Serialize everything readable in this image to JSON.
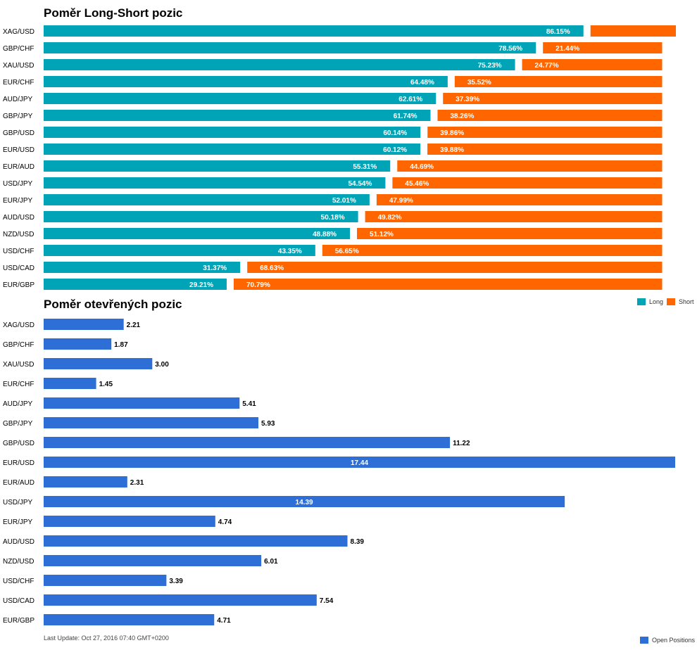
{
  "colors": {
    "long": "#00a4b6",
    "short": "#ff6600",
    "open": "#2d6fd6"
  },
  "chart_data": [
    {
      "type": "bar",
      "orientation": "horizontal",
      "stacked": true,
      "title": "Poměr Long-Short pozic",
      "categories": [
        "XAG/USD",
        "GBP/CHF",
        "XAU/USD",
        "EUR/CHF",
        "AUD/JPY",
        "GBP/JPY",
        "GBP/USD",
        "EUR/USD",
        "EUR/AUD",
        "USD/JPY",
        "EUR/JPY",
        "AUD/USD",
        "NZD/USD",
        "USD/CHF",
        "USD/CAD",
        "EUR/GBP"
      ],
      "series": [
        {
          "name": "Long",
          "values": [
            86.15,
            78.56,
            75.23,
            64.48,
            62.61,
            61.74,
            60.14,
            60.12,
            55.31,
            54.54,
            52.01,
            50.18,
            48.88,
            43.35,
            31.37,
            29.21
          ],
          "labels": [
            "86.15%",
            "78.56%",
            "75.23%",
            "64.48%",
            "62.61%",
            "61.74%",
            "60.14%",
            "60.12%",
            "55.31%",
            "54.54%",
            "52.01%",
            "50.18%",
            "48.88%",
            "43.35%",
            "31.37%",
            "29.21%"
          ]
        },
        {
          "name": "Short",
          "values": [
            13.85,
            21.44,
            24.77,
            35.52,
            37.39,
            38.26,
            39.86,
            39.88,
            44.69,
            45.46,
            47.99,
            49.82,
            51.12,
            56.65,
            68.63,
            70.79
          ],
          "labels": [
            "",
            "21.44%",
            "24.77%",
            "35.52%",
            "37.39%",
            "38.26%",
            "39.86%",
            "39.88%",
            "44.69%",
            "45.46%",
            "47.99%",
            "49.82%",
            "51.12%",
            "56.65%",
            "68.63%",
            "70.79%"
          ]
        }
      ],
      "legend": "bottom-right"
    },
    {
      "type": "bar",
      "orientation": "horizontal",
      "title": "Poměr otevřených pozic",
      "categories": [
        "XAG/USD",
        "GBP/CHF",
        "XAU/USD",
        "EUR/CHF",
        "AUD/JPY",
        "GBP/JPY",
        "GBP/USD",
        "EUR/USD",
        "EUR/AUD",
        "USD/JPY",
        "EUR/JPY",
        "AUD/USD",
        "NZD/USD",
        "USD/CHF",
        "USD/CAD",
        "EUR/GBP"
      ],
      "series": [
        {
          "name": "Open Positions",
          "values": [
            2.21,
            1.87,
            3.0,
            1.45,
            5.41,
            5.93,
            11.22,
            17.44,
            2.31,
            14.39,
            4.74,
            8.39,
            6.01,
            3.39,
            7.54,
            4.71
          ],
          "labels": [
            "2.21",
            "1.87",
            "3.00",
            "1.45",
            "5.41",
            "5.93",
            "11.22",
            "17.44",
            "2.31",
            "14.39",
            "4.74",
            "8.39",
            "6.01",
            "3.39",
            "7.54",
            "4.71"
          ]
        }
      ],
      "xlim": [
        0,
        17.44
      ],
      "legend": "bottom-right"
    }
  ],
  "legend": {
    "long": "Long",
    "short": "Short",
    "open": "Open Positions"
  },
  "footer": {
    "last_update": "Last Update: Oct 27, 2016 07:40 GMT+0200"
  }
}
